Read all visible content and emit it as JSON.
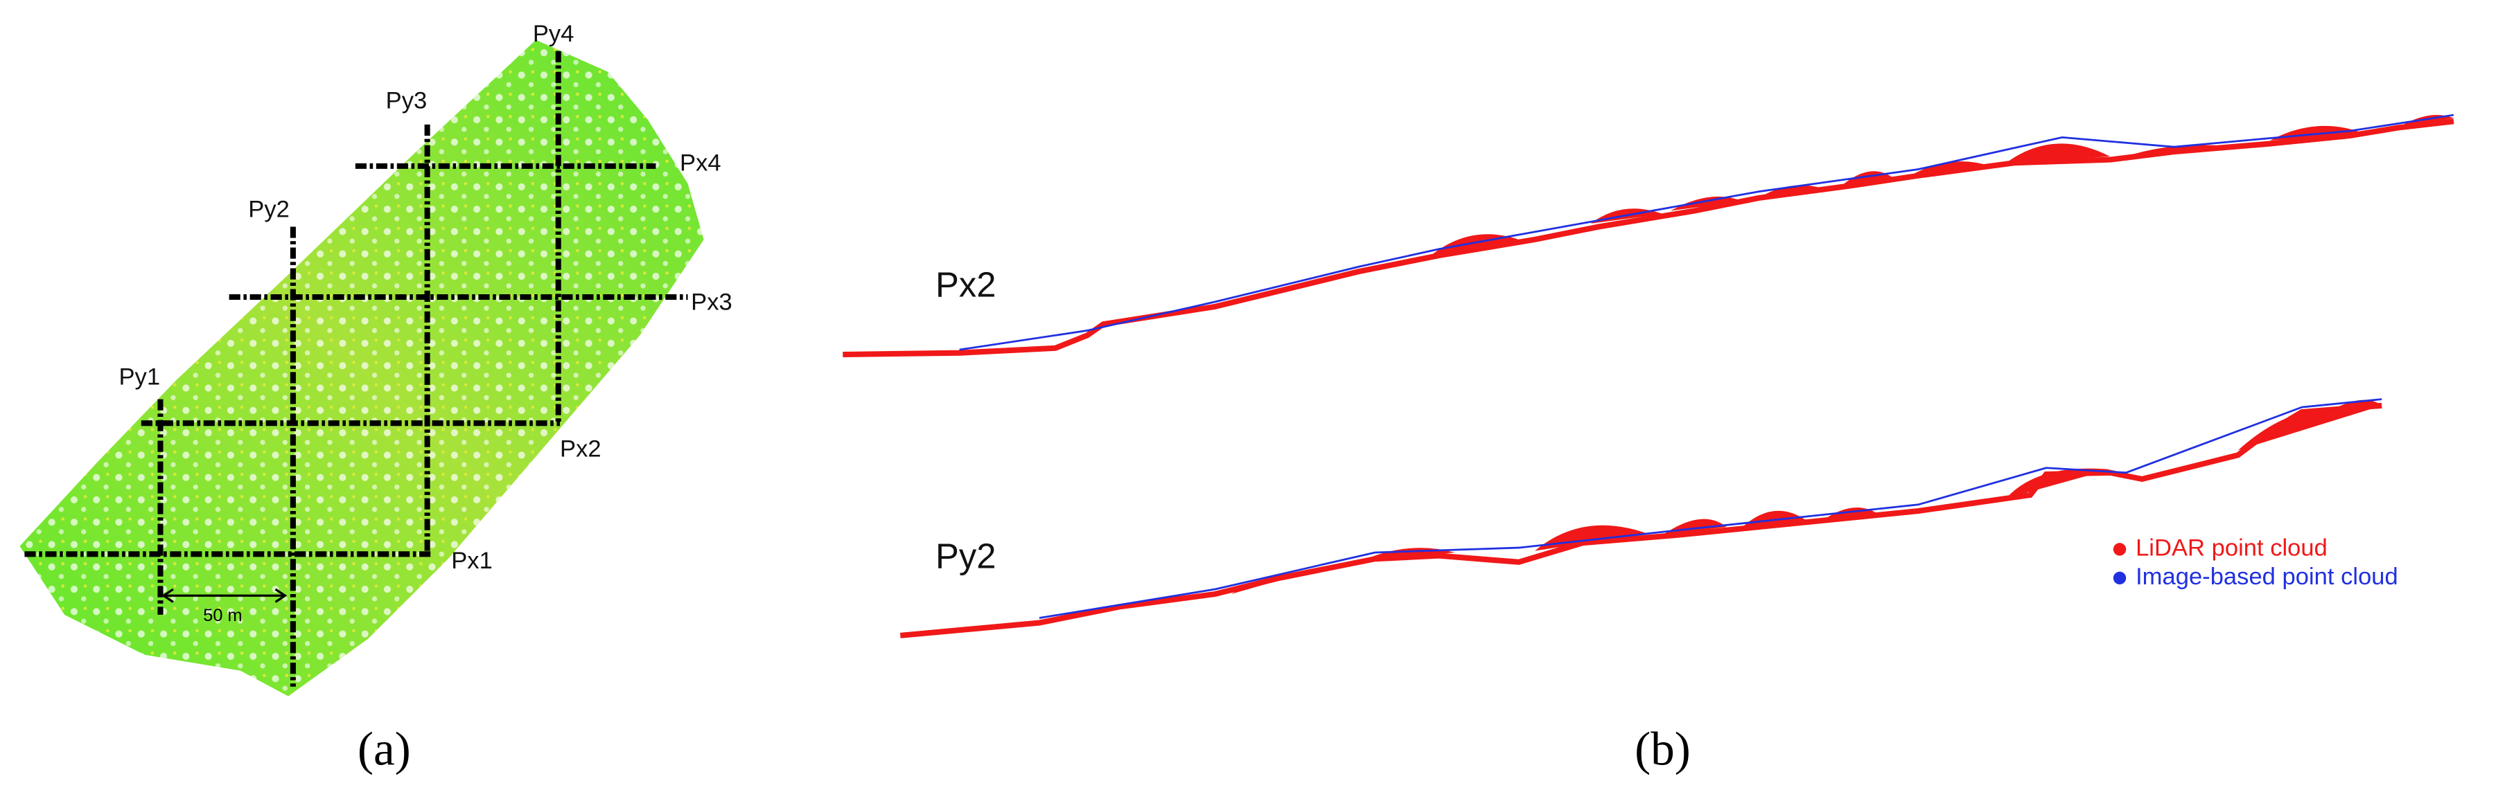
{
  "panel_a": {
    "caption": "(a)",
    "profiles_x": [
      "Px1",
      "Px2",
      "Px3",
      "Px4"
    ],
    "profiles_y": [
      "Py1",
      "Py2",
      "Py3",
      "Py4"
    ],
    "scale_bar": "50 m"
  },
  "panel_b": {
    "caption": "(b)",
    "profiles": [
      "Px2",
      "Py2"
    ],
    "legend": [
      "LiDAR point cloud",
      "Image-based point cloud"
    ]
  }
}
